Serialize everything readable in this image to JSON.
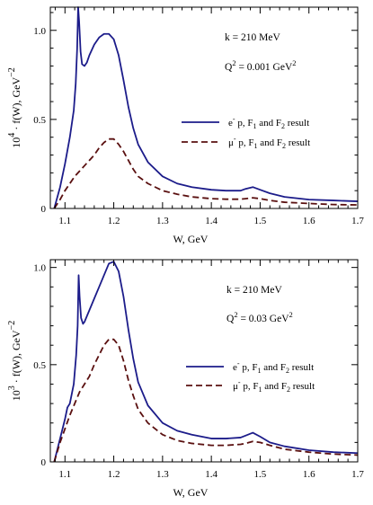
{
  "colors": {
    "ep_line": "#1c1c8a",
    "mup_line": "#5a1010",
    "axis": "#000000"
  },
  "chart_data": [
    {
      "type": "line",
      "xlabel": "W, GeV",
      "ylabel_prefix": "10",
      "ylabel_exp": "4",
      "ylabel_main": " · f(W),  GeV",
      "ylabel_unit_exp": "−2",
      "xlim": [
        1.07,
        1.7
      ],
      "ylim": [
        0,
        1.13
      ],
      "xticks": [
        1.1,
        1.2,
        1.3,
        1.4,
        1.5,
        1.6,
        1.7
      ],
      "xtick_labels": [
        "1.1",
        "1.2",
        "1.3",
        "1.4",
        "1.5",
        "1.6",
        "1.7"
      ],
      "yticks": [
        0,
        0.5,
        1.0
      ],
      "ytick_labels": [
        "0",
        "0.5",
        "1.0"
      ],
      "annotations": {
        "k_text": "k = 210 MeV",
        "q2_prefix": "Q",
        "q2_sup": "2",
        "q2_value": " = 0.001 GeV",
        "q2_unit_sup": "2"
      },
      "legend_position": "right",
      "series": [
        {
          "name_lepton": "e",
          "name_sup": "-",
          "name_p": " p, F",
          "name_s1": "1",
          "name_and": " and F",
          "name_s2": "2",
          "name_end": " result",
          "style": "solid",
          "x": [
            1.078,
            1.09,
            1.1,
            1.11,
            1.118,
            1.122,
            1.125,
            1.127,
            1.129,
            1.132,
            1.135,
            1.14,
            1.145,
            1.15,
            1.16,
            1.17,
            1.18,
            1.19,
            1.2,
            1.21,
            1.22,
            1.23,
            1.24,
            1.25,
            1.27,
            1.3,
            1.33,
            1.36,
            1.4,
            1.43,
            1.46,
            1.47,
            1.485,
            1.5,
            1.52,
            1.55,
            1.6,
            1.65,
            1.7
          ],
          "y": [
            0.0,
            0.12,
            0.25,
            0.4,
            0.55,
            0.7,
            0.9,
            1.13,
            1.05,
            0.88,
            0.81,
            0.8,
            0.82,
            0.86,
            0.92,
            0.96,
            0.98,
            0.98,
            0.95,
            0.86,
            0.72,
            0.57,
            0.45,
            0.36,
            0.26,
            0.18,
            0.14,
            0.12,
            0.105,
            0.1,
            0.1,
            0.11,
            0.12,
            0.105,
            0.085,
            0.065,
            0.05,
            0.045,
            0.04
          ]
        },
        {
          "name_lepton": "μ",
          "name_sup": "-",
          "name_p": " p, F",
          "name_s1": "1",
          "name_and": " and F",
          "name_s2": "2",
          "name_end": " result",
          "style": "dashed",
          "x": [
            1.078,
            1.09,
            1.1,
            1.11,
            1.12,
            1.13,
            1.14,
            1.15,
            1.16,
            1.17,
            1.18,
            1.19,
            1.2,
            1.21,
            1.22,
            1.23,
            1.24,
            1.25,
            1.27,
            1.3,
            1.33,
            1.36,
            1.4,
            1.43,
            1.46,
            1.47,
            1.485,
            1.5,
            1.52,
            1.55,
            1.6,
            1.65,
            1.7
          ],
          "y": [
            0.0,
            0.05,
            0.1,
            0.14,
            0.18,
            0.21,
            0.24,
            0.27,
            0.3,
            0.34,
            0.37,
            0.39,
            0.39,
            0.36,
            0.32,
            0.27,
            0.22,
            0.18,
            0.14,
            0.1,
            0.08,
            0.065,
            0.055,
            0.052,
            0.052,
            0.055,
            0.06,
            0.055,
            0.045,
            0.035,
            0.028,
            0.022,
            0.02
          ]
        }
      ]
    },
    {
      "type": "line",
      "xlabel": "W, GeV",
      "ylabel_prefix": "10",
      "ylabel_exp": "3",
      "ylabel_main": " · f(W),  GeV",
      "ylabel_unit_exp": "−2",
      "xlim": [
        1.07,
        1.7
      ],
      "ylim": [
        0,
        1.04
      ],
      "xticks": [
        1.1,
        1.2,
        1.3,
        1.4,
        1.5,
        1.6,
        1.7
      ],
      "xtick_labels": [
        "1.1",
        "1.2",
        "1.3",
        "1.4",
        "1.5",
        "1.6",
        "1.7"
      ],
      "yticks": [
        0,
        0.5,
        1.0
      ],
      "ytick_labels": [
        "0",
        "0.5",
        "1.0"
      ],
      "annotations": {
        "k_text": "k = 210 MeV",
        "q2_prefix": "Q",
        "q2_sup": "2",
        "q2_value": " = 0.03 GeV",
        "q2_unit_sup": "2"
      },
      "legend_position": "right",
      "series": [
        {
          "name_lepton": "e",
          "name_sup": "-",
          "name_p": " p, F",
          "name_s1": "1",
          "name_and": " and F",
          "name_s2": "2",
          "name_end": " result",
          "style": "solid",
          "x": [
            1.078,
            1.09,
            1.1,
            1.105,
            1.11,
            1.118,
            1.123,
            1.126,
            1.128,
            1.13,
            1.133,
            1.137,
            1.14,
            1.145,
            1.15,
            1.16,
            1.17,
            1.18,
            1.19,
            1.2,
            1.21,
            1.22,
            1.23,
            1.24,
            1.25,
            1.27,
            1.3,
            1.33,
            1.36,
            1.4,
            1.43,
            1.46,
            1.47,
            1.485,
            1.5,
            1.52,
            1.55,
            1.6,
            1.65,
            1.7
          ],
          "y": [
            0.0,
            0.12,
            0.22,
            0.28,
            0.3,
            0.4,
            0.55,
            0.7,
            0.96,
            0.85,
            0.74,
            0.71,
            0.72,
            0.75,
            0.78,
            0.84,
            0.9,
            0.96,
            1.02,
            1.03,
            0.98,
            0.85,
            0.68,
            0.53,
            0.41,
            0.29,
            0.2,
            0.16,
            0.14,
            0.12,
            0.12,
            0.125,
            0.135,
            0.15,
            0.13,
            0.1,
            0.08,
            0.06,
            0.05,
            0.045
          ]
        },
        {
          "name_lepton": "μ",
          "name_sup": "-",
          "name_p": " p, F",
          "name_s1": "1",
          "name_and": " and F",
          "name_s2": "2",
          "name_end": " result",
          "style": "dashed",
          "x": [
            1.078,
            1.09,
            1.1,
            1.11,
            1.12,
            1.13,
            1.14,
            1.15,
            1.16,
            1.17,
            1.18,
            1.19,
            1.2,
            1.21,
            1.22,
            1.23,
            1.24,
            1.25,
            1.27,
            1.3,
            1.33,
            1.36,
            1.4,
            1.43,
            1.46,
            1.47,
            1.485,
            1.5,
            1.52,
            1.55,
            1.6,
            1.65,
            1.7
          ],
          "y": [
            0.0,
            0.1,
            0.17,
            0.24,
            0.3,
            0.36,
            0.4,
            0.44,
            0.5,
            0.55,
            0.6,
            0.63,
            0.63,
            0.6,
            0.52,
            0.42,
            0.34,
            0.27,
            0.2,
            0.14,
            0.11,
            0.095,
            0.085,
            0.085,
            0.09,
            0.095,
            0.105,
            0.1,
            0.085,
            0.065,
            0.05,
            0.04,
            0.035
          ]
        }
      ]
    }
  ]
}
